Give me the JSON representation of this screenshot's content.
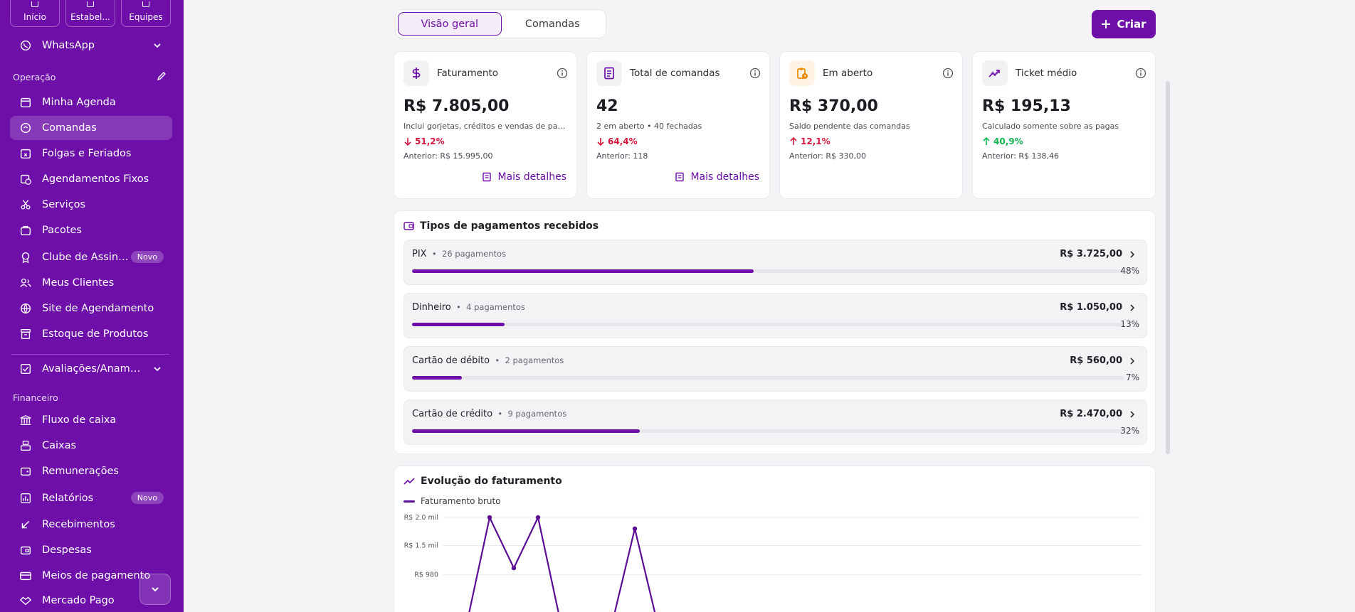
{
  "sidebar": {
    "top_tabs": [
      "Início",
      "Estabel...",
      "Equipes"
    ],
    "whatsapp": "WhatsApp",
    "section_operacao": "Operação",
    "operacao_items": [
      {
        "label": "Minha Agenda"
      },
      {
        "label": "Comandas",
        "active": true
      },
      {
        "label": "Folgas e Feriados"
      },
      {
        "label": "Agendamentos Fixos"
      },
      {
        "label": "Serviços"
      },
      {
        "label": "Pacotes"
      },
      {
        "label": "Clube de Assina...",
        "badge": "Novo"
      },
      {
        "label": "Meus Clientes"
      },
      {
        "label": "Site de Agendamento"
      },
      {
        "label": "Estoque de Produtos"
      }
    ],
    "avaliacoes": "Avaliações/Anamn...",
    "section_financeiro": "Financeiro",
    "financeiro_items": [
      {
        "label": "Fluxo de caixa"
      },
      {
        "label": "Caixas"
      },
      {
        "label": "Remunerações"
      },
      {
        "label": "Relatórios",
        "badge": "Novo"
      },
      {
        "label": "Recebimentos"
      },
      {
        "label": "Despesas"
      },
      {
        "label": "Meios de pagamento"
      },
      {
        "label": "Mercado Pago"
      }
    ]
  },
  "tabs": {
    "overview": "Visão geral",
    "comandas": "Comandas"
  },
  "create_label": "Criar",
  "cards": [
    {
      "title": "Faturamento",
      "value": "R$ 7.805,00",
      "sub": "Inclui gorjetas, créditos e vendas de pacotes",
      "delta": "51,2%",
      "direction": "down",
      "prev": "Anterior: R$ 15.995,00",
      "more": "Mais detalhes",
      "icon": "dollar-icon"
    },
    {
      "title": "Total de comandas",
      "value": "42",
      "sub": "2 em aberto • 40 fechadas",
      "delta": "64,4%",
      "direction": "down",
      "prev": "Anterior: 118",
      "more": "Mais detalhes",
      "icon": "receipt-icon"
    },
    {
      "title": "Em aberto",
      "value": "R$ 370,00",
      "sub": "Saldo pendente das comandas",
      "delta": "12,1%",
      "direction": "up-bad",
      "prev": "Anterior: R$ 330,00",
      "icon": "clipboard-clock-icon"
    },
    {
      "title": "Ticket médio",
      "value": "R$ 195,13",
      "sub": "Calculado somente sobre as pagas",
      "delta": "40,9%",
      "direction": "up",
      "prev": "Anterior: R$ 138,46",
      "icon": "trend-icon"
    }
  ],
  "payments": {
    "title": "Tipos de pagamentos recebidos",
    "rows": [
      {
        "name": "PIX",
        "count": "26 pagamentos",
        "amount": "R$ 3.725,00",
        "pct_label": "48%",
        "pct": 48
      },
      {
        "name": "Dinheiro",
        "count": "4 pagamentos",
        "amount": "R$ 1.050,00",
        "pct_label": "13%",
        "pct": 13
      },
      {
        "name": "Cartão de débito",
        "count": "2 pagamentos",
        "amount": "R$ 560,00",
        "pct_label": "7%",
        "pct": 7
      },
      {
        "name": "Cartão de crédito",
        "count": "9 pagamentos",
        "amount": "R$ 2.470,00",
        "pct_label": "32%",
        "pct": 32
      }
    ]
  },
  "chart_data": {
    "type": "line",
    "title": "Evolução do faturamento",
    "series": [
      {
        "name": "Faturamento bruto",
        "color": "#5b0d96",
        "values": [
          0,
          2000,
          1100,
          2000,
          0,
          0,
          0,
          1800,
          0
        ]
      }
    ],
    "y_ticks": [
      {
        "label": "R$ 2.0 mil",
        "value": 2000
      },
      {
        "label": "R$ 1.5 mil",
        "value": 1500
      },
      {
        "label": "R$ 980",
        "value": 980
      }
    ],
    "ylim": [
      0,
      2000
    ],
    "grid": true
  },
  "colors": {
    "brand": "#6d0fa8",
    "down": "#d4143a",
    "up": "#10b350"
  }
}
